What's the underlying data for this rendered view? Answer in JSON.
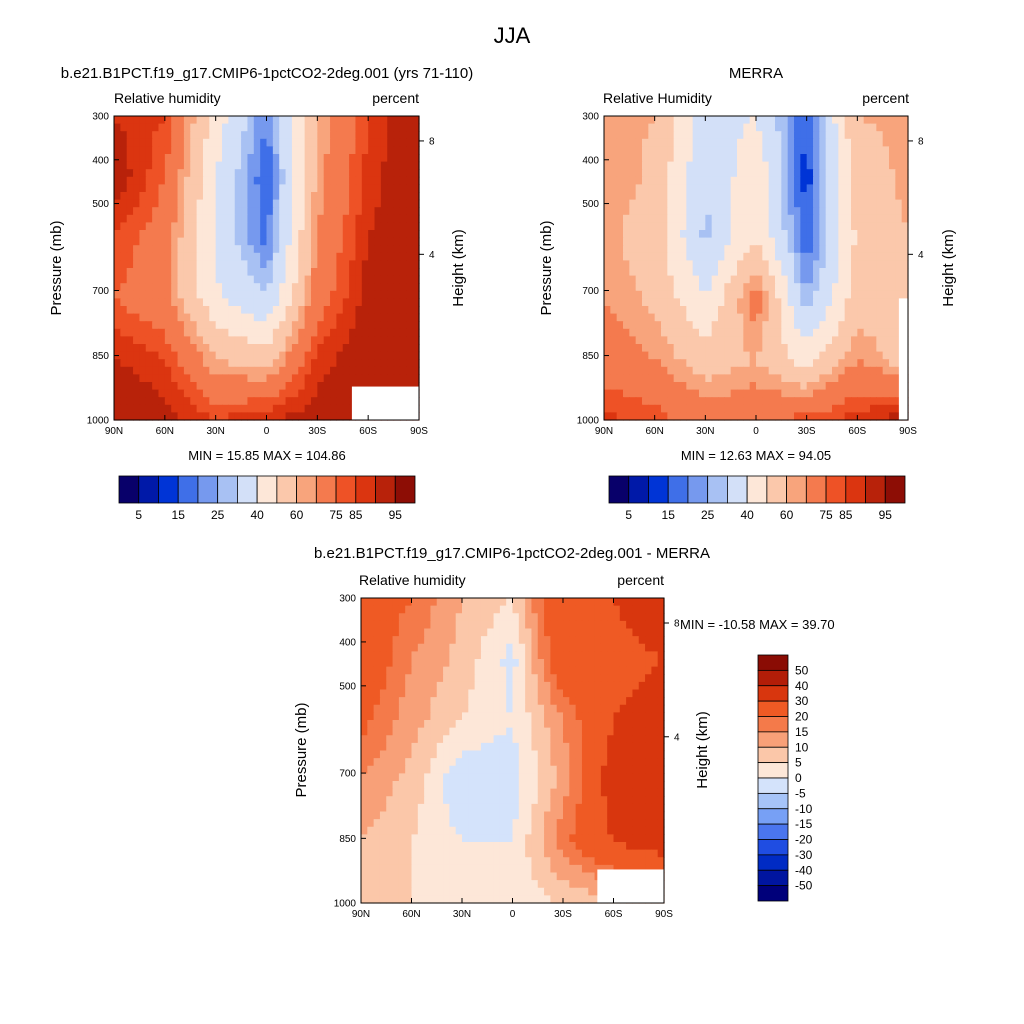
{
  "figure_title": "JJA",
  "chart_data": [
    {
      "type": "heatmap",
      "title": "b.e21.B1PCT.f19_g17.CMIP6-1pctCO2-2deg.001 (yrs 71-110)",
      "left_subtitle": "Relative humidity",
      "right_subtitle": "percent",
      "ylabel": "Pressure (mb)",
      "ylabel_right": "Height (km)",
      "xticks": [
        "90N",
        "60N",
        "30N",
        "0",
        "30S",
        "60S",
        "90S"
      ],
      "yticks": [
        "300",
        "400",
        "500",
        "700",
        "850",
        "1000"
      ],
      "yticks_right": [
        "8",
        "4"
      ],
      "stats_text": "MIN =  15.85  MAX = 104.86",
      "min": 15.85,
      "max": 104.86,
      "legend_labels": [
        "5",
        "15",
        "25",
        "40",
        "60",
        "75",
        "85",
        "95"
      ],
      "lat": [
        90,
        60,
        30,
        0,
        -30,
        -60,
        -90
      ],
      "pressure": [
        300,
        400,
        500,
        700,
        850,
        1000
      ],
      "values": [
        [
          85,
          80,
          45,
          20,
          60,
          80,
          95
        ],
        [
          90,
          75,
          40,
          15,
          62,
          82,
          92
        ],
        [
          80,
          70,
          38,
          18,
          65,
          85,
          90
        ],
        [
          75,
          68,
          42,
          30,
          70,
          88,
          92
        ],
        [
          85,
          80,
          60,
          55,
          82,
          90,
          95
        ],
        [
          95,
          88,
          80,
          85,
          88,
          92,
          95
        ]
      ]
    },
    {
      "type": "heatmap",
      "title": "MERRA",
      "left_subtitle": "Relative Humidity",
      "right_subtitle": "percent",
      "ylabel": "Pressure (mb)",
      "ylabel_right": "Height (km)",
      "xticks": [
        "90N",
        "60N",
        "30N",
        "0",
        "30S",
        "60S",
        "90S"
      ],
      "yticks": [
        "300",
        "400",
        "500",
        "700",
        "850",
        "1000"
      ],
      "yticks_right": [
        "8",
        "4"
      ],
      "stats_text": "MIN =  12.63  MAX =  94.05",
      "min": 12.63,
      "max": 94.05,
      "legend_labels": [
        "5",
        "15",
        "25",
        "40",
        "60",
        "75",
        "85",
        "95"
      ],
      "lat": [
        90,
        60,
        30,
        0,
        -30,
        -60,
        -90
      ],
      "pressure": [
        300,
        400,
        500,
        700,
        850,
        1000
      ],
      "values": [
        [
          62,
          60,
          35,
          40,
          15,
          60,
          62
        ],
        [
          65,
          58,
          30,
          48,
          12,
          55,
          62
        ],
        [
          62,
          55,
          28,
          50,
          15,
          52,
          60
        ],
        [
          65,
          58,
          40,
          70,
          25,
          55,
          58
        ],
        [
          70,
          65,
          55,
          60,
          45,
          65,
          55
        ],
        [
          82,
          78,
          70,
          72,
          78,
          82,
          90
        ]
      ]
    },
    {
      "type": "heatmap",
      "title": "b.e21.B1PCT.f19_g17.CMIP6-1pctCO2-2deg.001 - MERRA",
      "left_subtitle": "Relative humidity",
      "right_subtitle": "percent",
      "ylabel": "Pressure (mb)",
      "ylabel_right": "Height (km)",
      "xticks": [
        "90N",
        "60N",
        "30N",
        "0",
        "30S",
        "60S",
        "90S"
      ],
      "yticks": [
        "300",
        "400",
        "500",
        "700",
        "850",
        "1000"
      ],
      "yticks_right": [
        "8",
        "4"
      ],
      "stats_text": "MIN = -10.58  MAX =  39.70",
      "min": -10.58,
      "max": 39.7,
      "legend_labels": [
        "50",
        "40",
        "30",
        "20",
        "15",
        "10",
        "5",
        "0",
        "-5",
        "-10",
        "-15",
        "-20",
        "-30",
        "-40",
        "-50"
      ],
      "lat": [
        90,
        60,
        30,
        0,
        -30,
        -60,
        -90
      ],
      "pressure": [
        300,
        400,
        500,
        700,
        850,
        1000
      ],
      "values": [
        [
          25,
          20,
          10,
          5,
          30,
          30,
          35
        ],
        [
          28,
          15,
          8,
          -2,
          28,
          28,
          30
        ],
        [
          22,
          12,
          5,
          0,
          15,
          30,
          32
        ],
        [
          15,
          8,
          -5,
          -3,
          12,
          35,
          38
        ],
        [
          10,
          5,
          0,
          0,
          18,
          30,
          35
        ],
        [
          8,
          5,
          2,
          2,
          5,
          8,
          10
        ]
      ]
    }
  ],
  "colors": {
    "rh_levels": [
      "#08006a",
      "#0019a8",
      "#0034d6",
      "#3f6fe8",
      "#7699ee",
      "#a8c1f3",
      "#d3e0f8",
      "#fde7d8",
      "#fbc8ab",
      "#f8a47c",
      "#f47a4e",
      "#ee5226",
      "#db3510",
      "#b8220a",
      "#8d0d05"
    ],
    "diff_levels": [
      "#00007a",
      "#0015a0",
      "#002bc4",
      "#1f4de2",
      "#4a75ee",
      "#77a0f5",
      "#a6c4f8",
      "#d4e3fb",
      "#fde7d8",
      "#fbc7a9",
      "#f8a078",
      "#f47a4a",
      "#ef5a24",
      "#d8360e",
      "#b31d08",
      "#8a0c04"
    ]
  }
}
